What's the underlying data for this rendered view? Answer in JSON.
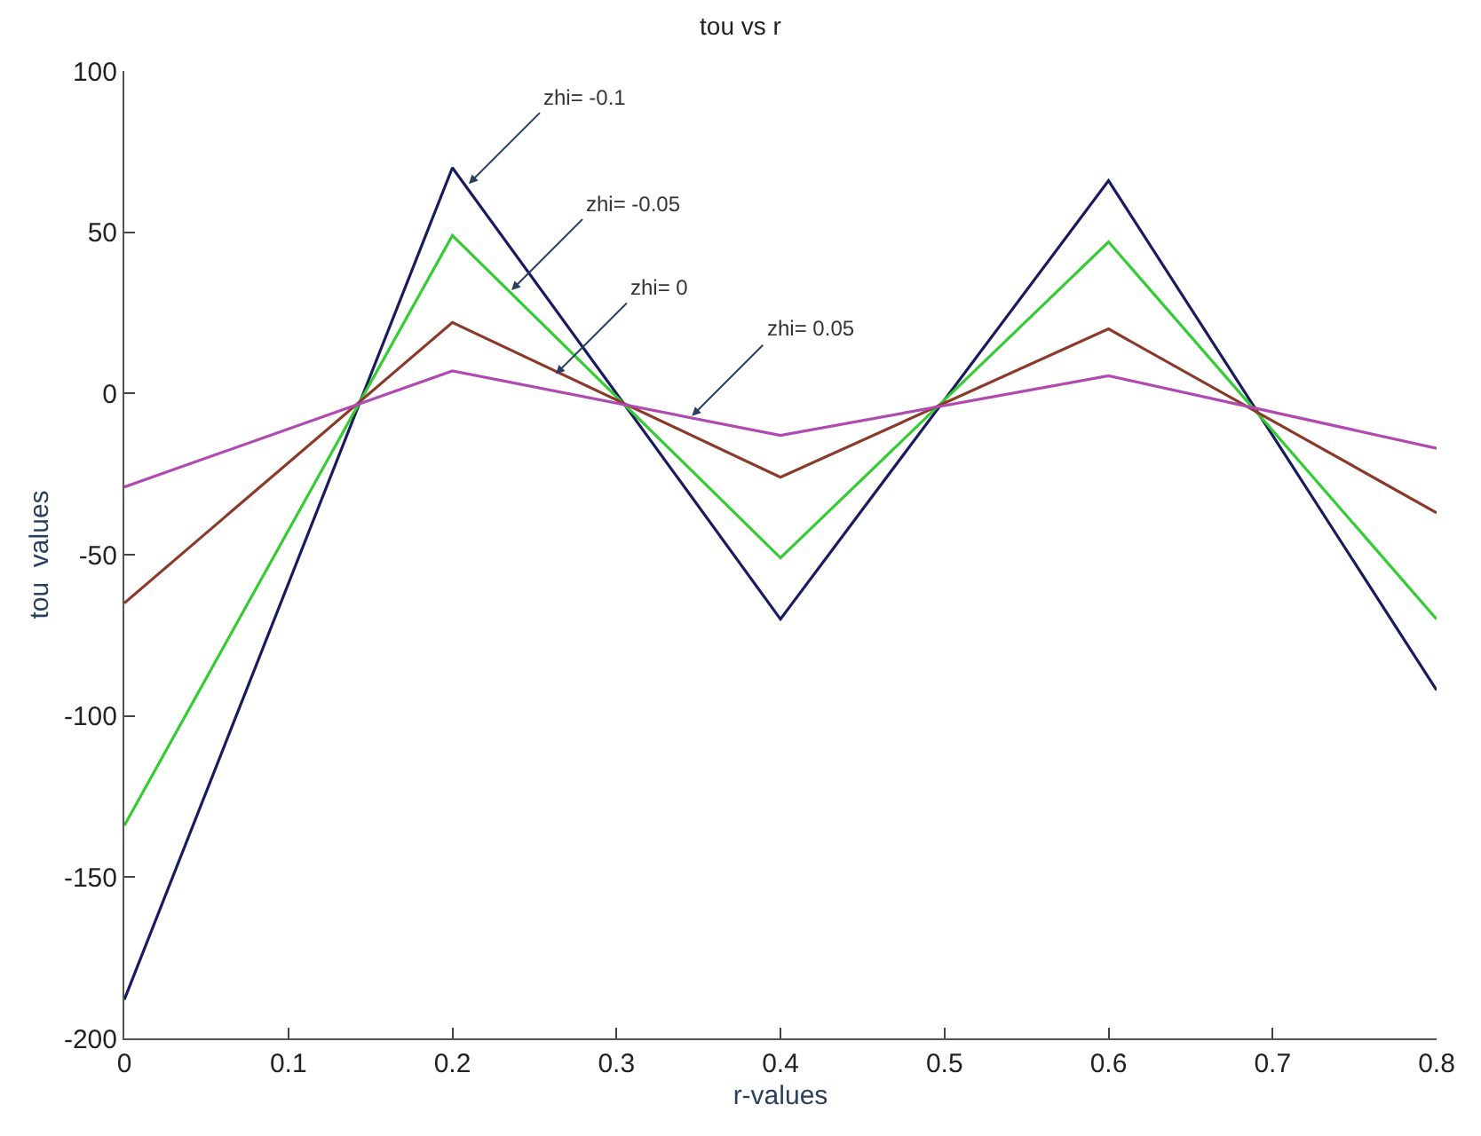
{
  "chart_data": {
    "type": "line",
    "title": "tou vs r",
    "xlabel": "r-values",
    "ylabel": "tou  values",
    "x": [
      0,
      0.2,
      0.4,
      0.6,
      0.8
    ],
    "series": [
      {
        "color": "#1a1a5e",
        "values": [
          -188,
          70,
          -70,
          66,
          -92
        ]
      },
      {
        "color": "#33cc33",
        "values": [
          -134,
          49,
          -51,
          47,
          -70
        ]
      },
      {
        "color": "#8b3a2a",
        "values": [
          -65,
          22,
          -26,
          20,
          -37
        ]
      },
      {
        "color": "#b04ab0",
        "values": [
          -29,
          7,
          -13,
          5.5,
          -17
        ]
      }
    ],
    "xlim": [
      0,
      0.8
    ],
    "xticks": [
      0,
      0.1,
      0.2,
      0.3,
      0.4,
      0.5,
      0.6,
      0.7,
      0.8
    ],
    "ylim": [
      -200,
      100
    ],
    "yticks": [
      -200,
      -150,
      -100,
      -50,
      0,
      50,
      100
    ],
    "marker": "none",
    "line_style": "solid",
    "annotations": [
      {
        "text": "zhi= -0.1",
        "x": 0.21,
        "y": 65
      },
      {
        "text": "zhi= -0.05",
        "x": 0.236,
        "y": 32
      },
      {
        "text": "zhi= 0",
        "x": 0.263,
        "y": 6
      },
      {
        "text": "zhi= 0.05",
        "x": 0.346,
        "y": -7
      }
    ]
  }
}
